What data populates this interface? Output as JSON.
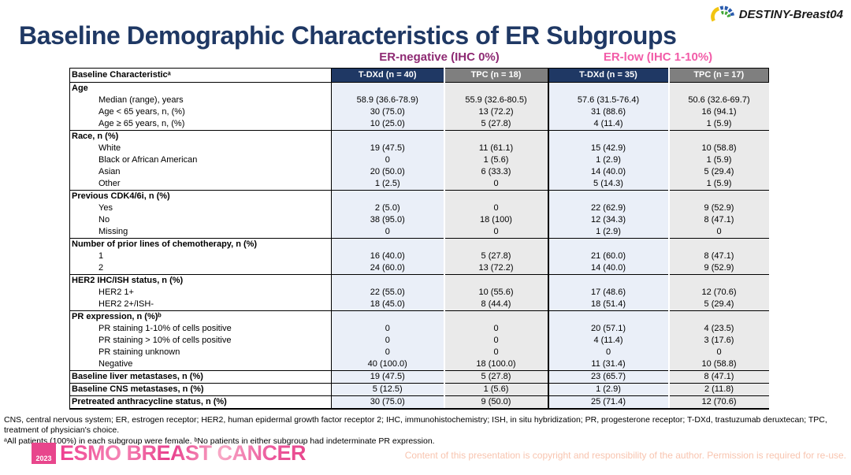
{
  "slide": {
    "brand": "DESTINY-Breast04",
    "title": "Baseline Demographic Characteristics of ER Subgroups"
  },
  "table": {
    "group_headers": [
      {
        "label": "ER-negative (IHC 0%)",
        "color": "#8E2A73"
      },
      {
        "label": "ER-low (IHC 1-10%)",
        "color": "#F25CA8"
      }
    ],
    "columns": [
      "Baseline Characteristicᵃ",
      "T-DXd (n = 40)",
      "TPC (n = 18)",
      "T-DXd (n = 35)",
      "TPC (n = 17)"
    ],
    "rows": [
      {
        "type": "section",
        "label": "Age",
        "values": [
          "",
          "",
          "",
          ""
        ]
      },
      {
        "type": "sub",
        "label": "Median (range), years",
        "values": [
          "58.9 (36.6-78.9)",
          "55.9 (32.6-80.5)",
          "57.6 (31.5-76.4)",
          "50.6 (32.6-69.7)"
        ]
      },
      {
        "type": "sub",
        "label": "Age < 65 years, n, (%)",
        "values": [
          "30 (75.0)",
          "13 (72.2)",
          "31 (88.6)",
          "16 (94.1)"
        ]
      },
      {
        "type": "sub",
        "label": "Age ≥ 65 years, n, (%)",
        "values": [
          "10 (25.0)",
          "5 (27.8)",
          "4 (11.4)",
          "1 (5.9)"
        ]
      },
      {
        "type": "section",
        "label": "Race, n (%)",
        "values": [
          "",
          "",
          "",
          ""
        ]
      },
      {
        "type": "sub",
        "label": "White",
        "values": [
          "19 (47.5)",
          "11 (61.1)",
          "15 (42.9)",
          "10 (58.8)"
        ]
      },
      {
        "type": "sub",
        "label": "Black or African American",
        "values": [
          "0",
          "1 (5.6)",
          "1 (2.9)",
          "1 (5.9)"
        ]
      },
      {
        "type": "sub",
        "label": "Asian",
        "values": [
          "20 (50.0)",
          "6 (33.3)",
          "14 (40.0)",
          "5 (29.4)"
        ]
      },
      {
        "type": "sub",
        "label": "Other",
        "values": [
          "1 (2.5)",
          "0",
          "5 (14.3)",
          "1 (5.9)"
        ]
      },
      {
        "type": "section",
        "label": "Previous CDK4/6i, n (%)",
        "values": [
          "",
          "",
          "",
          ""
        ]
      },
      {
        "type": "sub",
        "label": "Yes",
        "values": [
          "2 (5.0)",
          "0",
          "22 (62.9)",
          "9 (52.9)"
        ]
      },
      {
        "type": "sub",
        "label": "No",
        "values": [
          "38 (95.0)",
          "18 (100)",
          "12 (34.3)",
          "8 (47.1)"
        ]
      },
      {
        "type": "sub",
        "label": "Missing",
        "values": [
          "0",
          "0",
          "1 (2.9)",
          "0"
        ]
      },
      {
        "type": "section",
        "label": "Number of prior lines of chemotherapy, n (%)",
        "values": [
          "",
          "",
          "",
          ""
        ]
      },
      {
        "type": "sub",
        "label": "1",
        "values": [
          "16 (40.0)",
          "5 (27.8)",
          "21 (60.0)",
          "8 (47.1)"
        ]
      },
      {
        "type": "sub",
        "label": "2",
        "values": [
          "24 (60.0)",
          "13 (72.2)",
          "14 (40.0)",
          "9 (52.9)"
        ]
      },
      {
        "type": "section",
        "label": "HER2 IHC/ISH status, n (%)",
        "values": [
          "",
          "",
          "",
          ""
        ]
      },
      {
        "type": "sub",
        "label": "HER2 1+",
        "values": [
          "22 (55.0)",
          "10 (55.6)",
          "17 (48.6)",
          "12 (70.6)"
        ]
      },
      {
        "type": "sub",
        "label": "HER2 2+/ISH-",
        "values": [
          "18 (45.0)",
          "8 (44.4)",
          "18 (51.4)",
          "5 (29.4)"
        ]
      },
      {
        "type": "section",
        "label": "PR expression, n (%)ᵇ",
        "values": [
          "",
          "",
          "",
          ""
        ]
      },
      {
        "type": "sub",
        "label": "PR staining 1-10% of cells positive",
        "values": [
          "0",
          "0",
          "20 (57.1)",
          "4 (23.5)"
        ]
      },
      {
        "type": "sub",
        "label": "PR staining > 10% of cells positive",
        "values": [
          "0",
          "0",
          "4 (11.4)",
          "3 (17.6)"
        ]
      },
      {
        "type": "sub",
        "label": "PR staining unknown",
        "values": [
          "0",
          "0",
          "0",
          "0"
        ]
      },
      {
        "type": "sub",
        "label": "Negative",
        "values": [
          "40 (100.0)",
          "18 (100.0)",
          "11 (31.4)",
          "10 (58.8)"
        ]
      },
      {
        "type": "boldrow",
        "label": "Baseline liver metastases, n (%)",
        "values": [
          "19 (47.5)",
          "5 (27.8)",
          "23 (65.7)",
          "8 (47.1)"
        ]
      },
      {
        "type": "boldrow",
        "label": "Baseline CNS metastases, n (%)",
        "values": [
          "5 (12.5)",
          "1 (5.6)",
          "1 (2.9)",
          "2 (11.8)"
        ]
      },
      {
        "type": "boldrow",
        "label": "Pretreated anthracycline status, n (%)",
        "values": [
          "30 (75.0)",
          "9 (50.0)",
          "25 (71.4)",
          "12 (70.6)"
        ]
      }
    ]
  },
  "footnotes": {
    "abbreviations": "CNS, central nervous system; ER, estrogen receptor; HER2, human epidermal growth factor receptor 2; IHC, immunohistochemistry; ISH, in situ hybridization; PR, progesterone receptor; T-DXd, trastuzumab deruxtecan; TPC, treatment of physician's choice.",
    "notes": "ᵃAll patients (100%) in each subgroup were female. ᵇNo patients in either subgroup had indeterminate PR expression."
  },
  "footer": {
    "conference_year": "2023",
    "conference_name": "ESMO BREAST CANCER",
    "copyright": "Content of this presentation is copyright and responsibility of the author. Permission is required for re-use."
  },
  "colors": {
    "title_navy": "#1F3864",
    "tdxd_header_bg": "#1F3864",
    "tpc_header_bg": "#7F7F7F",
    "tdxd_column_bg": "#EAEFF8",
    "tpc_column_bg": "#EAEAEA",
    "er_negative_label": "#8E2A73",
    "er_low_label": "#F25CA8",
    "esmo_pink": "#E8468C",
    "copyright_text": "#F8C4AF"
  }
}
